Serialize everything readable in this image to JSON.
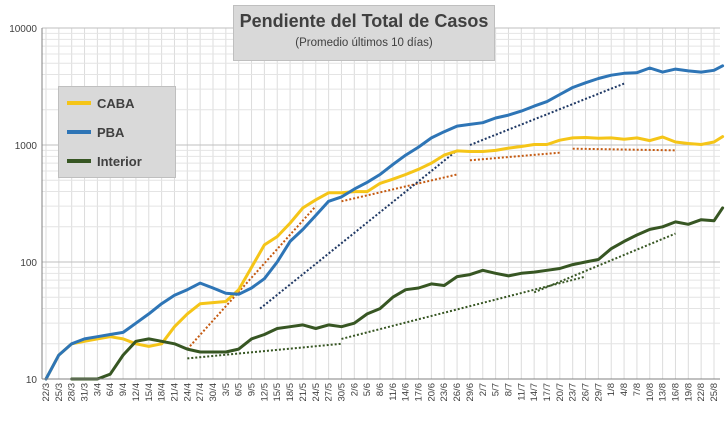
{
  "chart_data": {
    "type": "line",
    "title": "Pendiente del Total de Casos",
    "subtitle": "(Promedio últimos 10 días)",
    "xlabel": "",
    "ylabel": "",
    "y_scale": "log",
    "ylim": [
      10,
      10000
    ],
    "y_ticks": [
      "10",
      "100",
      "1000",
      "10000"
    ],
    "grid": true,
    "legend_position": "top-left",
    "x_tick_labels": [
      "22/3",
      "25/3",
      "28/3",
      "31/3",
      "3/4",
      "6/4",
      "9/4",
      "12/4",
      "15/4",
      "18/4",
      "21/4",
      "24/4",
      "27/4",
      "30/4",
      "3/5",
      "6/5",
      "9/5",
      "12/5",
      "15/5",
      "18/5",
      "21/5",
      "24/5",
      "27/5",
      "30/5",
      "2/6",
      "5/6",
      "8/6",
      "11/6",
      "14/6",
      "17/6",
      "20/6",
      "23/6",
      "26/6",
      "29/6",
      "2/7",
      "5/7",
      "8/7",
      "11/7",
      "14/7",
      "17/7",
      "20/7",
      "23/7",
      "26/7",
      "29/7",
      "1/8",
      "4/8",
      "7/8",
      "10/8",
      "13/8",
      "16/8",
      "19/8",
      "22/8",
      "25/8"
    ],
    "series": [
      {
        "name": "CABA",
        "color": "#f5c518",
        "x": [
          "22/3",
          "25/3",
          "28/3",
          "31/3",
          "3/4",
          "6/4",
          "9/4",
          "12/4",
          "15/4",
          "18/4",
          "21/4",
          "24/4",
          "27/4",
          "30/4",
          "3/5",
          "6/5",
          "9/5",
          "12/5",
          "15/5",
          "18/5",
          "21/5",
          "24/5",
          "27/5",
          "30/5",
          "2/6",
          "5/6",
          "8/6",
          "11/6",
          "14/6",
          "17/6",
          "20/6",
          "23/6",
          "26/6",
          "29/6",
          "2/7",
          "5/7",
          "8/7",
          "11/7",
          "14/7",
          "17/7",
          "20/7",
          "23/7",
          "26/7",
          "29/7",
          "1/8",
          "4/8",
          "7/8",
          "10/8",
          "13/8",
          "16/8",
          "19/8",
          "22/8",
          "25/8",
          "27/8"
        ],
        "values": [
          10,
          16,
          20,
          21,
          22,
          23,
          22,
          20,
          19,
          20,
          28,
          36,
          44,
          45,
          46,
          58,
          90,
          140,
          165,
          215,
          290,
          340,
          390,
          390,
          400,
          400,
          470,
          510,
          560,
          620,
          700,
          820,
          890,
          880,
          880,
          900,
          940,
          970,
          1010,
          1010,
          1100,
          1150,
          1160,
          1140,
          1150,
          1120,
          1150,
          1090,
          1170,
          1060,
          1030,
          1010,
          1060,
          1180
        ]
      },
      {
        "name": "PBA",
        "color": "#2e75b6",
        "x": [
          "22/3",
          "25/3",
          "28/3",
          "31/3",
          "3/4",
          "6/4",
          "9/4",
          "12/4",
          "15/4",
          "18/4",
          "21/4",
          "24/4",
          "27/4",
          "30/4",
          "3/5",
          "6/5",
          "9/5",
          "12/5",
          "15/5",
          "18/5",
          "21/5",
          "24/5",
          "27/5",
          "30/5",
          "2/6",
          "5/6",
          "8/6",
          "11/6",
          "14/6",
          "17/6",
          "20/6",
          "23/6",
          "26/6",
          "29/6",
          "2/7",
          "5/7",
          "8/7",
          "11/7",
          "14/7",
          "17/7",
          "20/7",
          "23/7",
          "26/7",
          "29/7",
          "1/8",
          "4/8",
          "7/8",
          "10/8",
          "13/8",
          "16/8",
          "19/8",
          "22/8",
          "25/8",
          "27/8"
        ],
        "values": [
          10,
          16,
          20,
          22,
          23,
          24,
          25,
          30,
          36,
          44,
          52,
          58,
          66,
          60,
          54,
          53,
          60,
          72,
          100,
          150,
          190,
          250,
          330,
          360,
          420,
          480,
          560,
          680,
          820,
          960,
          1150,
          1300,
          1450,
          1500,
          1550,
          1700,
          1800,
          1950,
          2150,
          2350,
          2700,
          3100,
          3400,
          3700,
          3950,
          4100,
          4150,
          4550,
          4200,
          4450,
          4300,
          4200,
          4350,
          4750
        ]
      },
      {
        "name": "Interior",
        "color": "#375623",
        "x": [
          "28/3",
          "31/3",
          "3/4",
          "6/4",
          "9/4",
          "12/4",
          "15/4",
          "18/4",
          "21/4",
          "24/4",
          "27/4",
          "30/4",
          "3/5",
          "6/5",
          "9/5",
          "12/5",
          "15/5",
          "18/5",
          "21/5",
          "24/5",
          "27/5",
          "30/5",
          "2/6",
          "5/6",
          "8/6",
          "11/6",
          "14/6",
          "17/6",
          "20/6",
          "23/6",
          "26/6",
          "29/6",
          "2/7",
          "5/7",
          "8/7",
          "11/7",
          "14/7",
          "17/7",
          "20/7",
          "23/7",
          "26/7",
          "29/7",
          "1/8",
          "4/8",
          "7/8",
          "10/8",
          "13/8",
          "16/8",
          "19/8",
          "22/8",
          "25/8",
          "27/8"
        ],
        "values": [
          10,
          10,
          10,
          11,
          16,
          21,
          22,
          21,
          20,
          18,
          17,
          17,
          17,
          18,
          22,
          24,
          27,
          28,
          29,
          27,
          29,
          28,
          30,
          36,
          40,
          50,
          58,
          60,
          65,
          63,
          75,
          78,
          85,
          80,
          76,
          80,
          82,
          85,
          88,
          95,
          100,
          105,
          130,
          150,
          170,
          190,
          200,
          220,
          210,
          230,
          225,
          290
        ]
      }
    ]
  }
}
